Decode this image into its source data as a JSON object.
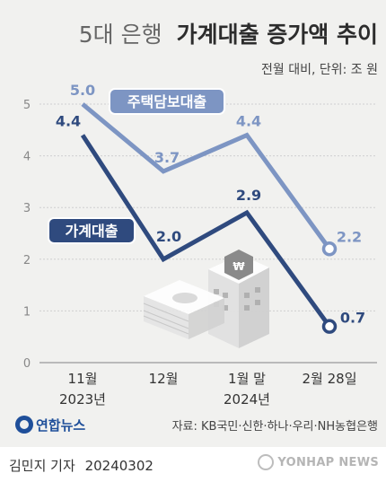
{
  "header": {
    "title_light": "5대 은행",
    "title_bold": "가계대출 증가액 추이",
    "unit_note": "전월 대비, 단위: 조 원"
  },
  "logo_text": "연합뉴스",
  "source": "자료: KB국민·신한·하나·우리·NH농협은행",
  "byline": {
    "author": "김민지 기자",
    "date": "20240302"
  },
  "watermark": "YONHAP NEWS",
  "colors": {
    "background": "#f1f1ef",
    "mortgage_line": "#7d95c3",
    "household_line": "#2f4a7e",
    "axis_text": "#888888"
  },
  "chart_data": {
    "type": "line",
    "categories": [
      [
        "11월",
        "2023년"
      ],
      [
        "12월",
        ""
      ],
      [
        "1월 말",
        "2024년"
      ],
      [
        "2월 28일",
        ""
      ]
    ],
    "ylim": [
      0,
      5
    ],
    "yticks": [
      "0",
      "1",
      "2",
      "3",
      "4",
      "5"
    ],
    "grid": true,
    "series": [
      {
        "name": "주택담보대출",
        "values": [
          5.0,
          3.7,
          4.4,
          2.2
        ],
        "labels": [
          "5.0",
          "3.7",
          "4.4",
          "2.2"
        ],
        "color": "#7d95c3"
      },
      {
        "name": "가계대출",
        "values": [
          4.4,
          2.0,
          2.9,
          0.7
        ],
        "labels": [
          "4.4",
          "2.0",
          "2.9",
          "0.7"
        ],
        "color": "#2f4a7e"
      }
    ]
  }
}
